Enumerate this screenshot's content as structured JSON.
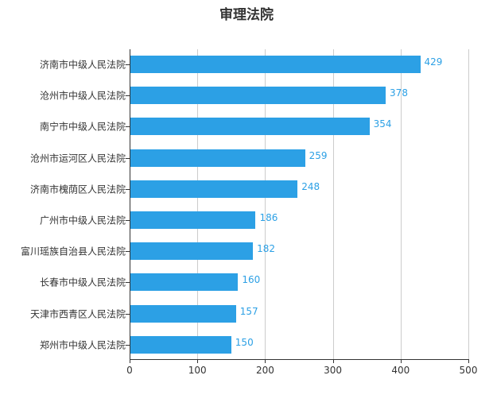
{
  "chart_data": {
    "type": "bar",
    "orientation": "horizontal",
    "title": "审理法院",
    "categories": [
      "济南市中级人民法院",
      "沧州市中级人民法院",
      "南宁市中级人民法院",
      "沧州市运河区人民法院",
      "济南市槐荫区人民法院",
      "广州市中级人民法院",
      "富川瑶族自治县人民法院",
      "长春市中级人民法院",
      "天津市西青区人民法院",
      "郑州市中级人民法院"
    ],
    "values": [
      429,
      378,
      354,
      259,
      248,
      186,
      182,
      160,
      157,
      150
    ],
    "xlabel": "",
    "ylabel": "",
    "xlim": [
      0,
      500
    ],
    "xticks": [
      "0",
      "100",
      "200",
      "300",
      "400",
      "500"
    ],
    "grid": true,
    "legend": null,
    "bar_color": "#2ca0e5"
  }
}
